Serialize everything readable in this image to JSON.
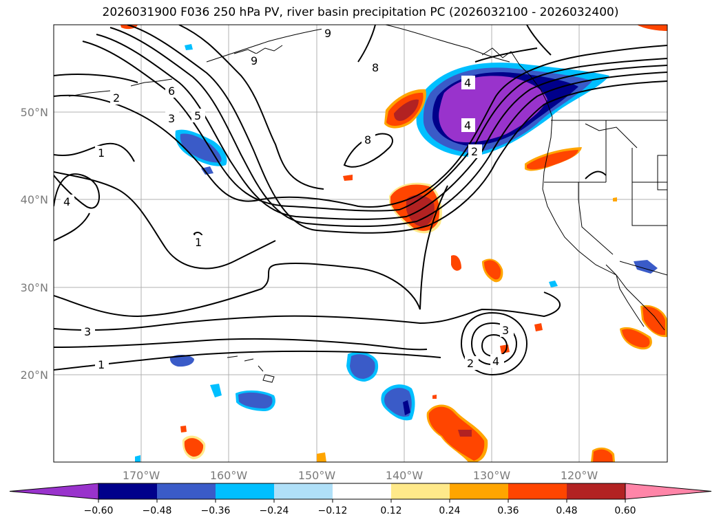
{
  "title": "2026031900 F036 250 hPa PV, river basin precipitation PC (2026032100 - 2026032400)",
  "map": {
    "lon_ticks": [
      "170°W",
      "160°W",
      "150°W",
      "140°W",
      "130°W",
      "120°W"
    ],
    "lat_ticks": [
      "50°N",
      "40°N",
      "30°N",
      "20°N"
    ],
    "pv_contour_labels": [
      "9",
      "9",
      "8",
      "8",
      "6",
      "5",
      "3",
      "2",
      "1",
      "4",
      "1",
      "3",
      "1",
      "4",
      "2",
      "4",
      "3",
      "4",
      "2"
    ]
  },
  "colorbar": {
    "labels": [
      "−0.60",
      "−0.48",
      "−0.36",
      "−0.24",
      "−0.12",
      "0.12",
      "0.24",
      "0.36",
      "0.48",
      "0.60"
    ],
    "colors": [
      "#9933cc",
      "#00008b",
      "#3a5bc8",
      "#00bfff",
      "#b0e0f8",
      "#ffffff",
      "#ffe98a",
      "#ffa500",
      "#ff4500",
      "#b22222",
      "#ff85a8"
    ]
  }
}
